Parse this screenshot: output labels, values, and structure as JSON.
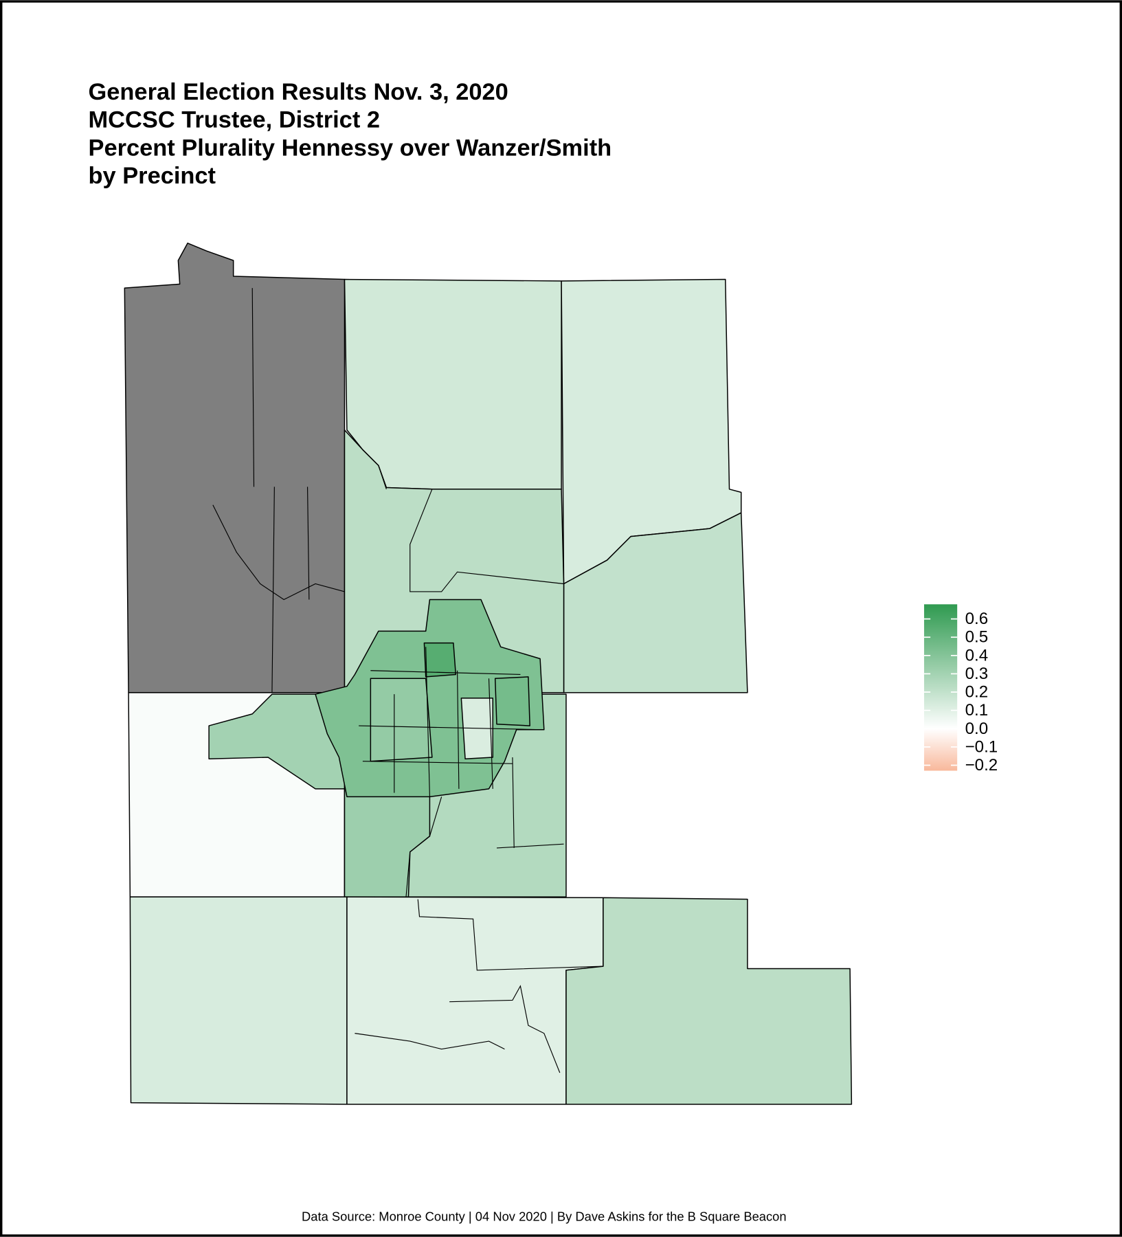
{
  "chart_data": {
    "type": "choropleth",
    "title_lines": [
      "General Election Results Nov. 3, 2020",
      "MCCSC Trustee, District 2",
      "Percent Plurality Hennessy over Wanzer/Smith",
      "by Precinct"
    ],
    "values": [
      null,
      0.15,
      0.13,
      0.2,
      0.22,
      0.02,
      0.3,
      0.25,
      0.32,
      0.13,
      0.1,
      0.22,
      0.42,
      0.55,
      0.35,
      0.12,
      0.45
    ],
    "clim": [
      -0.23,
      0.68
    ],
    "ticks": [
      0.6,
      0.5,
      0.4,
      0.3,
      0.2,
      0.1,
      {
        "value": 0,
        "label": "0.0"
      },
      {
        "value": -0.1,
        "label": "−0.1"
      },
      {
        "value": -0.2,
        "label": "−0.2"
      }
    ],
    "color_low": "#f8b89b",
    "color_mid": "#ffffff",
    "color_high": "#2f9a50",
    "na_color": "#7f7f7f",
    "source": "Data Source: Monroe County | 04 Nov 2020 | By Dave Askins for the B Square Beacon"
  }
}
